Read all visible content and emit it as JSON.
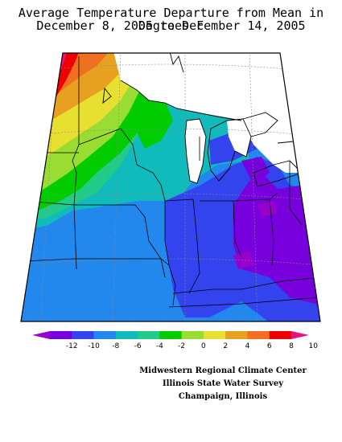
{
  "title_line1": "Average Temperature Departure from Mean in Degrees F",
  "title_line2": "December 8, 2005 to December 14, 2005",
  "legend": {
    "ticks": [
      "-12",
      "-10",
      "-8",
      "-6",
      "-4",
      "-2",
      "0",
      "2",
      "4",
      "6",
      "8",
      "10"
    ],
    "colors": [
      "#9900cc",
      "#7700dd",
      "#3344ee",
      "#2288ee",
      "#11bbbb",
      "#22cc88",
      "#00cc00",
      "#99dd33",
      "#e8e030",
      "#e8a020",
      "#f07020",
      "#ee0000",
      "#ee1177"
    ]
  },
  "credits": [
    "Midwestern Regional Climate Center",
    "Illinois State Water Survey",
    "Champaign, Illinois"
  ]
}
